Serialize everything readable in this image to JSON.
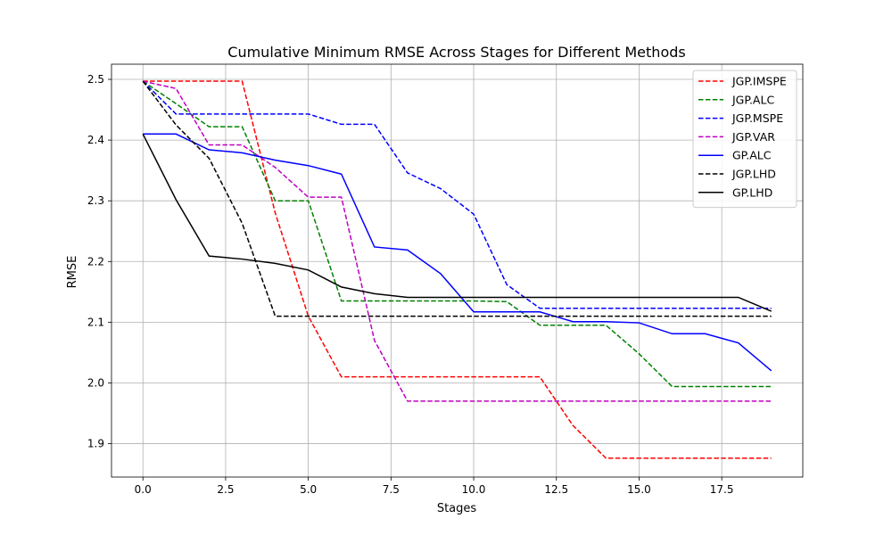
{
  "chart_data": {
    "type": "line",
    "title": "Cumulative Minimum RMSE Across Stages for Different Methods",
    "xlabel": "Stages",
    "ylabel": "RMSE",
    "xlim": [
      -0.95,
      19.95
    ],
    "ylim": [
      1.845,
      2.525
    ],
    "xticks": [
      0.0,
      2.5,
      5.0,
      7.5,
      10.0,
      12.5,
      15.0,
      17.5
    ],
    "xtick_labels": [
      "0.0",
      "2.5",
      "5.0",
      "7.5",
      "10.0",
      "12.5",
      "15.0",
      "17.5"
    ],
    "yticks": [
      1.9,
      2.0,
      2.1,
      2.2,
      2.3,
      2.4,
      2.5
    ],
    "ytick_labels": [
      "1.9",
      "2.0",
      "2.1",
      "2.2",
      "2.3",
      "2.4",
      "2.5"
    ],
    "grid": true,
    "legend_position": "top-right",
    "x": [
      0,
      1,
      2,
      3,
      4,
      5,
      6,
      7,
      8,
      9,
      10,
      11,
      12,
      13,
      14,
      15,
      16,
      17,
      18,
      19
    ],
    "series": [
      {
        "name": "JGP.IMSPE",
        "color": "#ff0000",
        "dash": "dashed",
        "values": [
          2.497,
          2.497,
          2.497,
          2.497,
          2.28,
          2.11,
          2.01,
          2.01,
          2.01,
          2.01,
          2.01,
          2.01,
          2.01,
          1.93,
          1.876,
          1.876,
          1.876,
          1.876,
          1.876,
          1.876
        ]
      },
      {
        "name": "JGP.ALC",
        "color": "#008000",
        "dash": "dashed",
        "values": [
          2.497,
          2.46,
          2.422,
          2.422,
          2.3,
          2.3,
          2.135,
          2.135,
          2.135,
          2.135,
          2.135,
          2.134,
          2.095,
          2.095,
          2.095,
          2.048,
          1.994,
          1.994,
          1.994,
          1.994
        ]
      },
      {
        "name": "JGP.MSPE",
        "color": "#0000ff",
        "dash": "dashed",
        "values": [
          2.497,
          2.443,
          2.443,
          2.443,
          2.443,
          2.443,
          2.426,
          2.426,
          2.346,
          2.32,
          2.278,
          2.162,
          2.123,
          2.123,
          2.123,
          2.123,
          2.123,
          2.123,
          2.123,
          2.123
        ]
      },
      {
        "name": "JGP.VAR",
        "color": "#bf00bf",
        "dash": "dashed",
        "values": [
          2.497,
          2.485,
          2.392,
          2.392,
          2.355,
          2.306,
          2.306,
          2.07,
          1.97,
          1.97,
          1.97,
          1.97,
          1.97,
          1.97,
          1.97,
          1.97,
          1.97,
          1.97,
          1.97,
          1.97
        ]
      },
      {
        "name": "GP.ALC",
        "color": "#0000ff",
        "dash": "solid",
        "values": [
          2.41,
          2.41,
          2.384,
          2.379,
          2.367,
          2.358,
          2.344,
          2.224,
          2.219,
          2.18,
          2.117,
          2.117,
          2.117,
          2.101,
          2.101,
          2.099,
          2.081,
          2.081,
          2.066,
          2.02
        ]
      },
      {
        "name": "JGP.LHD",
        "color": "#000000",
        "dash": "dashed",
        "values": [
          2.497,
          2.425,
          2.37,
          2.263,
          2.11,
          2.11,
          2.11,
          2.11,
          2.11,
          2.11,
          2.11,
          2.11,
          2.11,
          2.11,
          2.11,
          2.11,
          2.11,
          2.11,
          2.11,
          2.11
        ]
      },
      {
        "name": "GP.LHD",
        "color": "#000000",
        "dash": "solid",
        "values": [
          2.41,
          2.302,
          2.209,
          2.204,
          2.197,
          2.186,
          2.158,
          2.147,
          2.141,
          2.141,
          2.141,
          2.141,
          2.141,
          2.141,
          2.141,
          2.141,
          2.141,
          2.141,
          2.141,
          2.118
        ]
      }
    ]
  }
}
